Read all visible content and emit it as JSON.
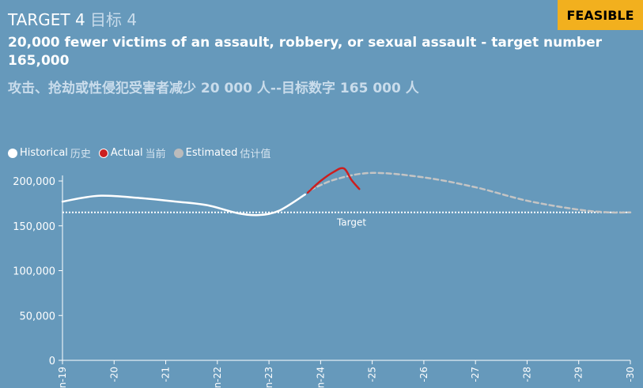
{
  "header": {
    "target_label": "TARGET 4",
    "target_label_zh": "目标 4",
    "badge": "FEASIBLE",
    "title": "20,000 fewer victims of an assault, robbery, or sexual assault - target number 165,000",
    "title_zh": "攻击、抢劫或性侵犯受害者减少 20 000 人--目标数字 165 000 人"
  },
  "legend": [
    {
      "label": "Historical",
      "label_zh": "历史",
      "color": "#ffffff"
    },
    {
      "label": "Actual",
      "label_zh": "当前",
      "color": "#cc1f1f"
    },
    {
      "label": "Estimated",
      "label_zh": "估计值",
      "color": "#bbbbbb"
    }
  ],
  "chart_data": {
    "type": "line",
    "x_ticks": [
      "n-19",
      "-20",
      "-21",
      "n-22",
      "n-23",
      "n-24",
      "-25",
      "-26",
      "-27",
      "-28",
      "-29",
      "-30"
    ],
    "x_range": [
      2019,
      2030
    ],
    "ylim": [
      0,
      215000
    ],
    "y_ticks": [
      0,
      50000,
      100000,
      150000,
      200000
    ],
    "y_tick_labels": [
      "0",
      "50,000",
      "100,000",
      "150,000",
      "200,000"
    ],
    "target": {
      "value": 165000,
      "label": "Target"
    },
    "series": [
      {
        "name": "Historical",
        "color": "#ffffff",
        "x": [
          2019.0,
          2019.7,
          2020.5,
          2021.2,
          2021.8,
          2022.4,
          2022.8,
          2023.2,
          2023.7
        ],
        "y": [
          177000,
          183500,
          181000,
          177000,
          173000,
          164000,
          162000,
          167000,
          185000
        ]
      },
      {
        "name": "Actual",
        "color": "#cc1f1f",
        "x": [
          2023.75,
          2024.0,
          2024.25,
          2024.45,
          2024.6,
          2024.75
        ],
        "y": [
          187000,
          200000,
          210000,
          214000,
          201000,
          191000
        ]
      },
      {
        "name": "Estimated",
        "color": "#c4c4c4",
        "x": [
          2023.8,
          2024.3,
          2025.0,
          2026.0,
          2027.0,
          2028.0,
          2029.0,
          2029.6,
          2030.0
        ],
        "y": [
          190000,
          202000,
          209000,
          204000,
          193000,
          178000,
          168000,
          165000,
          165000
        ]
      }
    ]
  }
}
